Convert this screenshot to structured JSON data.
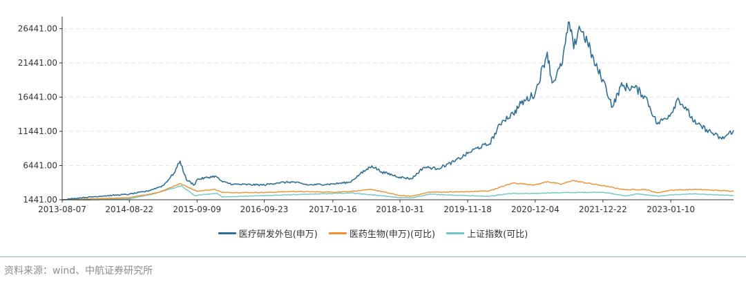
{
  "chart_data": {
    "type": "line",
    "title": "",
    "xlabel": "",
    "ylabel": "",
    "x_tick_labels": [
      "2013-08-07",
      "2014-08-22",
      "2015-09-09",
      "2016-09-23",
      "2017-10-16",
      "2018-10-31",
      "2019-11-18",
      "2020-12-04",
      "2021-12-22",
      "2023-01-10"
    ],
    "y_tick_labels": [
      "1441.00",
      "6441.00",
      "11441.00",
      "16441.00",
      "21441.00",
      "26441.00"
    ],
    "yticks": [
      1441,
      6441,
      11441,
      16441,
      21441,
      26441
    ],
    "ylim": [
      1441,
      27800
    ],
    "xlim": [
      "2013-08-07",
      "2023-12-31"
    ],
    "grid": {
      "horizontal": true,
      "vertical": false
    },
    "legend_position": "bottom",
    "series": [
      {
        "name": "医疗研发外包(申万)",
        "color": "#2d6f9a",
        "points": [
          [
            "2013-08-07",
            1441
          ],
          [
            "2013-12-01",
            1750
          ],
          [
            "2014-04-01",
            2000
          ],
          [
            "2014-08-22",
            2250
          ],
          [
            "2014-12-01",
            2700
          ],
          [
            "2015-03-01",
            3500
          ],
          [
            "2015-05-01",
            5300
          ],
          [
            "2015-06-05",
            7100
          ],
          [
            "2015-07-10",
            4400
          ],
          [
            "2015-08-25",
            3600
          ],
          [
            "2015-09-09",
            4400
          ],
          [
            "2015-12-20",
            4900
          ],
          [
            "2016-02-01",
            4050
          ],
          [
            "2016-04-01",
            3700
          ],
          [
            "2016-09-23",
            3600
          ],
          [
            "2016-12-01",
            3900
          ],
          [
            "2017-03-01",
            4050
          ],
          [
            "2017-06-01",
            3600
          ],
          [
            "2017-10-16",
            3750
          ],
          [
            "2018-01-20",
            4000
          ],
          [
            "2018-03-15",
            5100
          ],
          [
            "2018-05-25",
            6400
          ],
          [
            "2018-07-20",
            5500
          ],
          [
            "2018-10-31",
            4750
          ],
          [
            "2019-01-04",
            4500
          ],
          [
            "2019-03-15",
            6200
          ],
          [
            "2019-06-01",
            6000
          ],
          [
            "2019-09-01",
            7000
          ],
          [
            "2019-11-18",
            8200
          ],
          [
            "2020-01-10",
            9000
          ],
          [
            "2020-03-20",
            9600
          ],
          [
            "2020-06-01",
            13000
          ],
          [
            "2020-08-01",
            14000
          ],
          [
            "2020-09-15",
            15500
          ],
          [
            "2020-12-04",
            17000
          ],
          [
            "2021-02-10",
            23000
          ],
          [
            "2021-03-10",
            18500
          ],
          [
            "2021-05-01",
            21000
          ],
          [
            "2021-06-15",
            27400
          ],
          [
            "2021-07-10",
            23500
          ],
          [
            "2021-08-10",
            26800
          ],
          [
            "2021-09-25",
            24500
          ],
          [
            "2021-11-10",
            21000
          ],
          [
            "2021-12-22",
            19000
          ],
          [
            "2022-02-15",
            15000
          ],
          [
            "2022-04-01",
            18000
          ],
          [
            "2022-06-20",
            17800
          ],
          [
            "2022-08-20",
            16500
          ],
          [
            "2022-10-25",
            12500
          ],
          [
            "2023-01-10",
            14000
          ],
          [
            "2023-02-20",
            16300
          ],
          [
            "2023-04-10",
            14500
          ],
          [
            "2023-06-01",
            12500
          ],
          [
            "2023-08-01",
            11700
          ],
          [
            "2023-10-25",
            10300
          ],
          [
            "2023-12-31",
            11600
          ]
        ]
      },
      {
        "name": "医药生物(申万)(可比)",
        "color": "#f28e2b",
        "points": [
          [
            "2013-08-07",
            1441
          ],
          [
            "2014-01-01",
            1550
          ],
          [
            "2014-08-22",
            1750
          ],
          [
            "2015-02-01",
            2500
          ],
          [
            "2015-06-05",
            3800
          ],
          [
            "2015-09-09",
            2700
          ],
          [
            "2015-12-20",
            2950
          ],
          [
            "2016-02-01",
            2500
          ],
          [
            "2016-09-23",
            2500
          ],
          [
            "2017-03-01",
            2650
          ],
          [
            "2017-10-16",
            2550
          ],
          [
            "2018-01-20",
            2650
          ],
          [
            "2018-05-25",
            2950
          ],
          [
            "2018-10-31",
            2050
          ],
          [
            "2019-01-04",
            1950
          ],
          [
            "2019-04-15",
            2550
          ],
          [
            "2019-11-18",
            2600
          ],
          [
            "2020-03-20",
            2750
          ],
          [
            "2020-08-01",
            3900
          ],
          [
            "2020-12-04",
            3600
          ],
          [
            "2021-02-10",
            4100
          ],
          [
            "2021-05-01",
            3700
          ],
          [
            "2021-06-30",
            4250
          ],
          [
            "2021-12-22",
            3500
          ],
          [
            "2022-04-25",
            2900
          ],
          [
            "2022-08-20",
            2950
          ],
          [
            "2022-10-25",
            2450
          ],
          [
            "2023-01-10",
            2850
          ],
          [
            "2023-06-01",
            2950
          ],
          [
            "2023-12-31",
            2700
          ]
        ]
      },
      {
        "name": "上证指数(可比)",
        "color": "#6cc7c4",
        "points": [
          [
            "2013-08-07",
            1441
          ],
          [
            "2014-01-01",
            1400
          ],
          [
            "2014-08-22",
            1600
          ],
          [
            "2014-12-31",
            2250
          ],
          [
            "2015-06-12",
            3480
          ],
          [
            "2015-08-26",
            2050
          ],
          [
            "2015-12-31",
            2400
          ],
          [
            "2016-01-28",
            1850
          ],
          [
            "2016-09-23",
            2050
          ],
          [
            "2017-10-16",
            2350
          ],
          [
            "2018-01-29",
            2450
          ],
          [
            "2018-10-31",
            1750
          ],
          [
            "2019-01-04",
            1700
          ],
          [
            "2019-04-15",
            2250
          ],
          [
            "2019-11-18",
            2050
          ],
          [
            "2020-03-20",
            1950
          ],
          [
            "2020-07-10",
            2350
          ],
          [
            "2020-12-04",
            2350
          ],
          [
            "2021-02-18",
            2450
          ],
          [
            "2021-12-22",
            2550
          ],
          [
            "2022-04-27",
            2000
          ],
          [
            "2022-07-05",
            2300
          ],
          [
            "2022-10-31",
            1950
          ],
          [
            "2023-01-10",
            2150
          ],
          [
            "2023-05-10",
            2300
          ],
          [
            "2023-12-31",
            2050
          ]
        ]
      }
    ]
  },
  "source_text": "资料来源：wind、中航证券研究所"
}
